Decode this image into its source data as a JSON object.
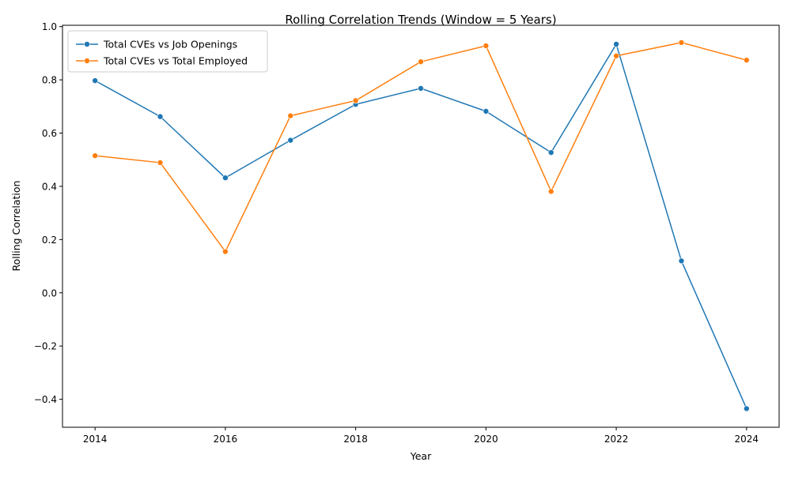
{
  "chart_data": {
    "type": "line",
    "title": "Rolling Correlation Trends (Window = 5 Years)",
    "xlabel": "Year",
    "ylabel": "Rolling Correlation",
    "xlim": [
      2013.5,
      2024.5
    ],
    "ylim": [
      -0.505,
      1.005
    ],
    "x_ticks": [
      2014,
      2016,
      2018,
      2020,
      2022,
      2024
    ],
    "y_ticks": [
      -0.4,
      -0.2,
      0.0,
      0.2,
      0.4,
      0.6,
      0.8,
      1.0
    ],
    "x_tick_labels": [
      "2014",
      "2016",
      "2018",
      "2020",
      "2022",
      "2024"
    ],
    "y_tick_labels": [
      "−0.4",
      "−0.2",
      "0.0",
      "0.2",
      "0.4",
      "0.6",
      "0.8",
      "1.0"
    ],
    "grid": false,
    "legend_position": "top-left",
    "x": [
      2014,
      2015,
      2016,
      2017,
      2018,
      2019,
      2020,
      2021,
      2022,
      2023,
      2024
    ],
    "series": [
      {
        "name": "Total CVEs vs Job Openings",
        "color": "#1f77b4",
        "values": [
          0.797,
          0.662,
          0.432,
          0.573,
          0.708,
          0.768,
          0.682,
          0.527,
          0.934,
          0.12,
          -0.435
        ]
      },
      {
        "name": "Total CVEs vs Total Employed",
        "color": "#ff7f0e",
        "values": [
          0.515,
          0.489,
          0.155,
          0.665,
          0.722,
          0.868,
          0.928,
          0.381,
          0.89,
          0.94,
          0.874
        ]
      }
    ]
  }
}
